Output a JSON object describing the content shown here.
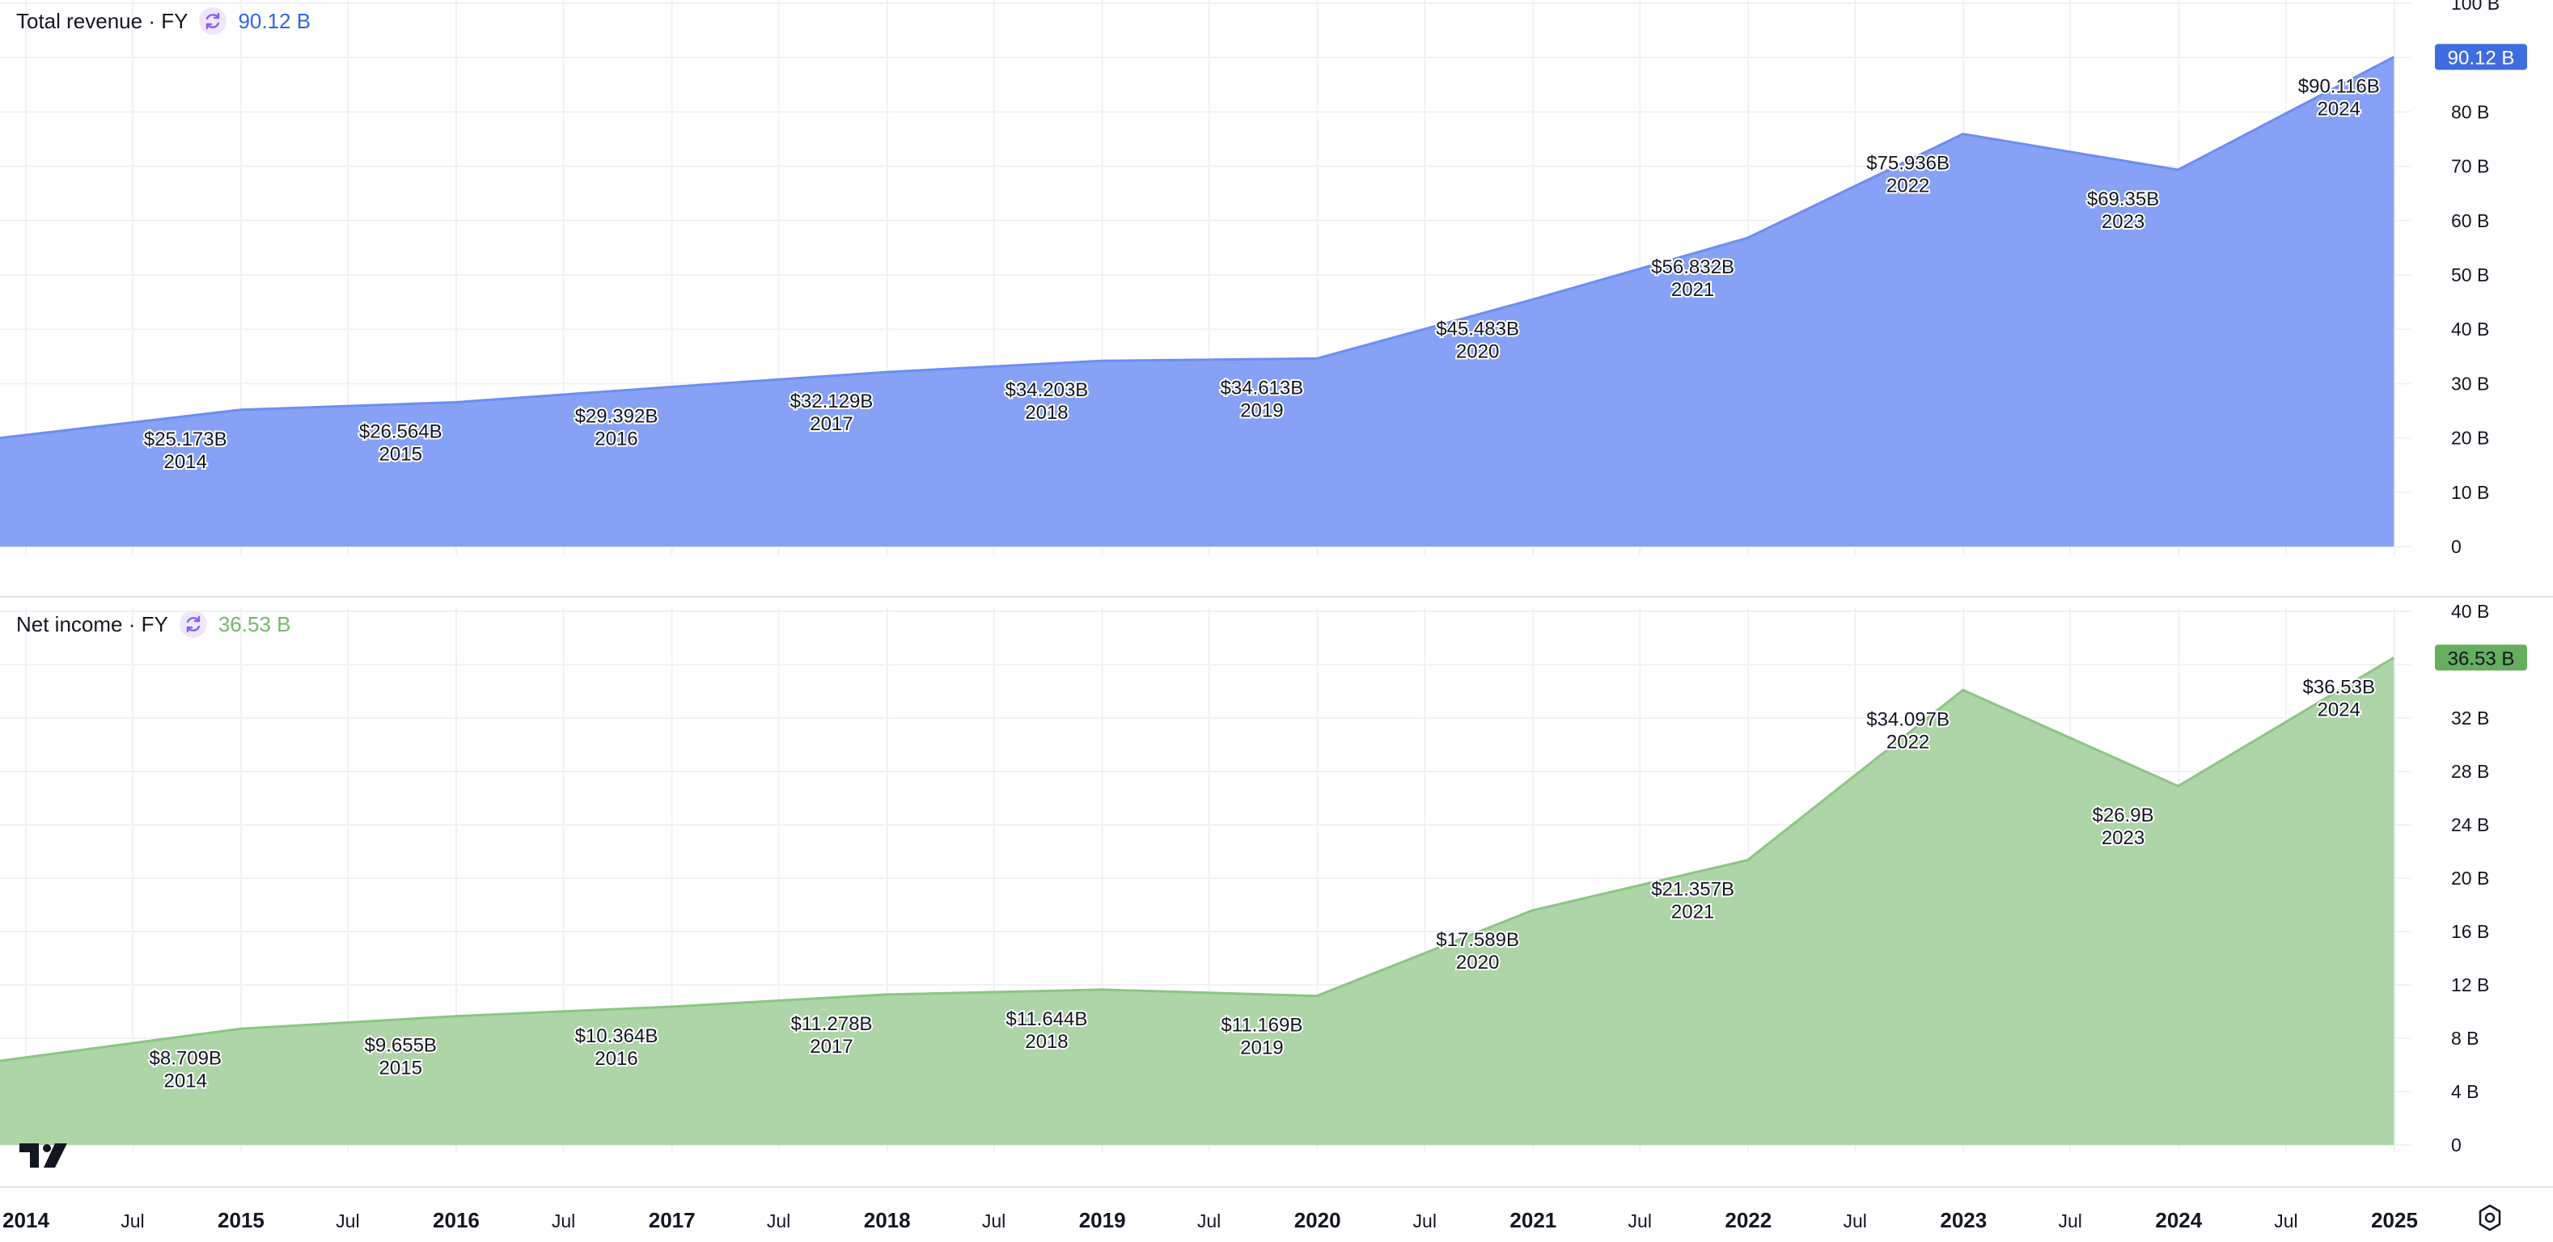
{
  "colors": {
    "revenue_line": "#6d8ef0",
    "revenue_fill": "#7f9cf5",
    "revenue_badge": "#3f6ce0",
    "revenue_text": "#2f65e6",
    "income_line": "#8cc584",
    "income_fill": "#a9d3a2",
    "income_badge": "#65ae5d",
    "income_text": "#76b86c",
    "refresh_icon": "#8b5cf6",
    "grid": "#f0f2f5"
  },
  "icons": {
    "refresh": "refresh-icon",
    "logo": "tradingview-logo-icon",
    "settings": "settings-icon"
  },
  "revenue_pane": {
    "title": "Total revenue · FY",
    "value": "90.12 B",
    "badge": "90.12 B"
  },
  "income_pane": {
    "title": "Net income · FY",
    "value": "36.53 B",
    "badge": "36.53 B"
  },
  "chart_data": [
    {
      "type": "area",
      "title": "Total revenue · FY",
      "x": [
        "2013-12-31",
        "2014-12-31",
        "2015-12-31",
        "2016-12-31",
        "2017-12-31",
        "2018-12-31",
        "2019-12-31",
        "2020-12-31",
        "2021-12-31",
        "2022-12-31",
        "2023-12-31",
        "2024-12-31"
      ],
      "values": [
        20.0,
        25.173,
        26.564,
        29.392,
        32.129,
        34.203,
        34.613,
        45.483,
        56.832,
        75.936,
        69.35,
        90.116
      ],
      "data_labels": [
        {
          "value": "$25.173B",
          "year": "2014"
        },
        {
          "value": "$26.564B",
          "year": "2015"
        },
        {
          "value": "$29.392B",
          "year": "2016"
        },
        {
          "value": "$32.129B",
          "year": "2017"
        },
        {
          "value": "$34.203B",
          "year": "2018"
        },
        {
          "value": "$34.613B",
          "year": "2019"
        },
        {
          "value": "$45.483B",
          "year": "2020"
        },
        {
          "value": "$56.832B",
          "year": "2021"
        },
        {
          "value": "$75.936B",
          "year": "2022"
        },
        {
          "value": "$69.35B",
          "year": "2023"
        },
        {
          "value": "$90.116B",
          "year": "2024"
        }
      ],
      "ylim": [
        0,
        100
      ],
      "y_ticks": [
        0,
        10,
        20,
        30,
        40,
        50,
        60,
        70,
        80,
        90,
        100
      ],
      "y_tick_labels": [
        "0",
        "10 B",
        "20 B",
        "30 B",
        "40 B",
        "50 B",
        "60 B",
        "70 B",
        "80 B",
        "",
        "100 B"
      ],
      "last_value_label": "90.12 B",
      "grid": true
    },
    {
      "type": "area",
      "title": "Net income · FY",
      "x": [
        "2013-12-31",
        "2014-12-31",
        "2015-12-31",
        "2016-12-31",
        "2017-12-31",
        "2018-12-31",
        "2019-12-31",
        "2020-12-31",
        "2021-12-31",
        "2022-12-31",
        "2023-12-31",
        "2024-12-31"
      ],
      "values": [
        6.3,
        8.709,
        9.655,
        10.364,
        11.278,
        11.644,
        11.169,
        17.589,
        21.357,
        34.097,
        26.9,
        36.53
      ],
      "data_labels": [
        {
          "value": "$8.709B",
          "year": "2014"
        },
        {
          "value": "$9.655B",
          "year": "2015"
        },
        {
          "value": "$10.364B",
          "year": "2016"
        },
        {
          "value": "$11.278B",
          "year": "2017"
        },
        {
          "value": "$11.644B",
          "year": "2018"
        },
        {
          "value": "$11.169B",
          "year": "2019"
        },
        {
          "value": "$17.589B",
          "year": "2020"
        },
        {
          "value": "$21.357B",
          "year": "2021"
        },
        {
          "value": "$34.097B",
          "year": "2022"
        },
        {
          "value": "$26.9B",
          "year": "2023"
        },
        {
          "value": "$36.53B",
          "year": "2024"
        }
      ],
      "ylim": [
        0,
        40
      ],
      "y_ticks": [
        0,
        4,
        8,
        12,
        16,
        20,
        24,
        28,
        32,
        36,
        40
      ],
      "y_tick_labels": [
        "0",
        "4 B",
        "8 B",
        "12 B",
        "16 B",
        "20 B",
        "24 B",
        "28 B",
        "32 B",
        "",
        "40 B"
      ],
      "last_value_label": "36.53 B",
      "grid": true
    }
  ],
  "time_axis": {
    "start": "2014-01-01",
    "end": "2025-01-01",
    "ticks": [
      {
        "date": "2014-01-01",
        "label": "2014",
        "major": true
      },
      {
        "date": "2014-07-01",
        "label": "Jul",
        "major": false
      },
      {
        "date": "2015-01-01",
        "label": "2015",
        "major": true
      },
      {
        "date": "2015-07-01",
        "label": "Jul",
        "major": false
      },
      {
        "date": "2016-01-01",
        "label": "2016",
        "major": true
      },
      {
        "date": "2016-07-01",
        "label": "Jul",
        "major": false
      },
      {
        "date": "2017-01-01",
        "label": "2017",
        "major": true
      },
      {
        "date": "2017-07-01",
        "label": "Jul",
        "major": false
      },
      {
        "date": "2018-01-01",
        "label": "2018",
        "major": true
      },
      {
        "date": "2018-07-01",
        "label": "Jul",
        "major": false
      },
      {
        "date": "2019-01-01",
        "label": "2019",
        "major": true
      },
      {
        "date": "2019-07-01",
        "label": "Jul",
        "major": false
      },
      {
        "date": "2020-01-01",
        "label": "2020",
        "major": true
      },
      {
        "date": "2020-07-01",
        "label": "Jul",
        "major": false
      },
      {
        "date": "2021-01-01",
        "label": "2021",
        "major": true
      },
      {
        "date": "2021-07-01",
        "label": "Jul",
        "major": false
      },
      {
        "date": "2022-01-01",
        "label": "2022",
        "major": true
      },
      {
        "date": "2022-07-01",
        "label": "Jul",
        "major": false
      },
      {
        "date": "2023-01-01",
        "label": "2023",
        "major": true
      },
      {
        "date": "2023-07-01",
        "label": "Jul",
        "major": false
      },
      {
        "date": "2024-01-01",
        "label": "2024",
        "major": true
      },
      {
        "date": "2024-07-01",
        "label": "Jul",
        "major": false
      },
      {
        "date": "2025-01-01",
        "label": "2025",
        "major": true
      }
    ]
  }
}
